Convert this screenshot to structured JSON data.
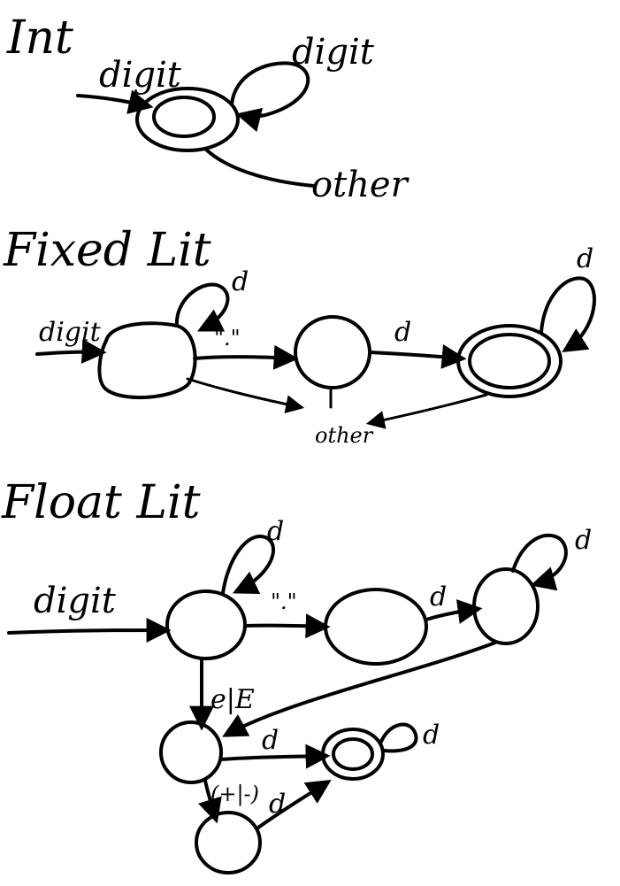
{
  "diagrams": {
    "int": {
      "title": "Int",
      "labels": {
        "start": "digit",
        "loop": "digit",
        "exit": "other"
      }
    },
    "fixed": {
      "title": "Fixed Lit",
      "labels": {
        "start": "digit",
        "s0_loop": "d",
        "to_s1": "\".\"",
        "s1_to_s2": "d",
        "s2_loop": "d",
        "exit": "other"
      }
    },
    "float": {
      "title": "Float Lit",
      "labels": {
        "start": "digit",
        "s0_loop": "d",
        "to_s1": "\".\"",
        "s1_to_s2": "d",
        "s2_loop": "d",
        "to_exp": "e|E",
        "exp_to_accept": "d",
        "sign": "(+|-)",
        "sign_to_accept": "d",
        "accept_loop": "d"
      }
    }
  }
}
